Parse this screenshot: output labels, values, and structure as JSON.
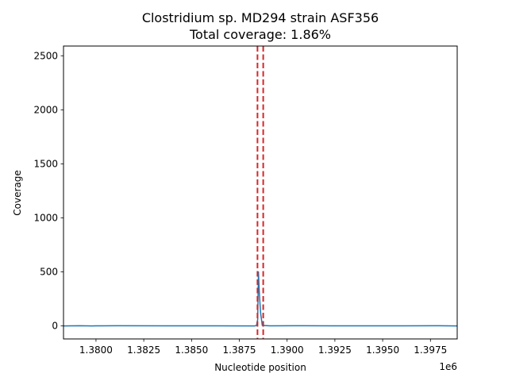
{
  "chart_data": {
    "type": "line",
    "title_line1": "Clostridium sp. MD294 strain ASF356",
    "title_line2": "Total coverage: 1.86%",
    "xlabel": "Nucleotide position",
    "ylabel": "Coverage",
    "x_offset_label": "1e6",
    "xlim": [
      1378300,
      1398900
    ],
    "ylim": [
      -120,
      2590
    ],
    "xticks": [
      1380000,
      1382500,
      1385000,
      1387500,
      1390000,
      1392500,
      1395000,
      1397500
    ],
    "xtick_labels": [
      "1.3800",
      "1.3825",
      "1.3850",
      "1.3875",
      "1.3900",
      "1.3925",
      "1.3950",
      "1.3975"
    ],
    "yticks": [
      0,
      500,
      1000,
      1500,
      2000,
      2500
    ],
    "ytick_labels": [
      "0",
      "500",
      "1000",
      "1500",
      "2000",
      "2500"
    ],
    "series_color": "#1f77b4",
    "vline_color": "#d62728",
    "vlines": [
      1388450,
      1388750
    ],
    "series": [
      {
        "x": [
          1378300,
          1379150,
          1379800,
          1380000,
          1381100,
          1383600,
          1386300,
          1388300,
          1388400,
          1388460,
          1388500,
          1388540,
          1388580,
          1388620,
          1388660,
          1388700,
          1389100,
          1390400,
          1392300,
          1394300,
          1397900,
          1398900
        ],
        "y": [
          0,
          2,
          0,
          1,
          2,
          1,
          1,
          0,
          5,
          60,
          500,
          330,
          210,
          110,
          60,
          5,
          1,
          2,
          1,
          1,
          2,
          0
        ]
      }
    ]
  }
}
